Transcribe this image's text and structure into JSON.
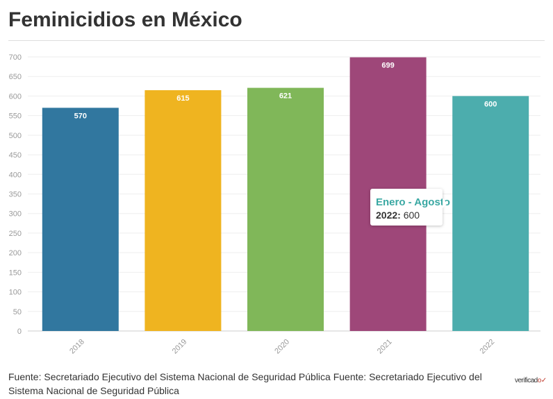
{
  "title": "Feminicidios en México",
  "chart_data": {
    "type": "bar",
    "categories": [
      "2018",
      "2019",
      "2020",
      "2021",
      "2022"
    ],
    "values": [
      570,
      615,
      621,
      699,
      600
    ],
    "colors": [
      "#31779f",
      "#efb420",
      "#80b759",
      "#9e4779",
      "#4cadad"
    ],
    "ylim": [
      0,
      700
    ],
    "yticks": [
      0,
      50,
      100,
      150,
      200,
      250,
      300,
      350,
      400,
      450,
      500,
      550,
      600,
      650,
      700
    ],
    "grid": true,
    "data_labels": true
  },
  "tooltip": {
    "title": "Enero - Agosto",
    "label": "2022:",
    "value": "600"
  },
  "footer": "Fuente: Secretariado Ejecutivo del Sistema Nacional de Seguridad Pública Fuente: Secretariado Ejecutivo del Sistema Nacional de Seguridad Pública",
  "logo": "verificado"
}
